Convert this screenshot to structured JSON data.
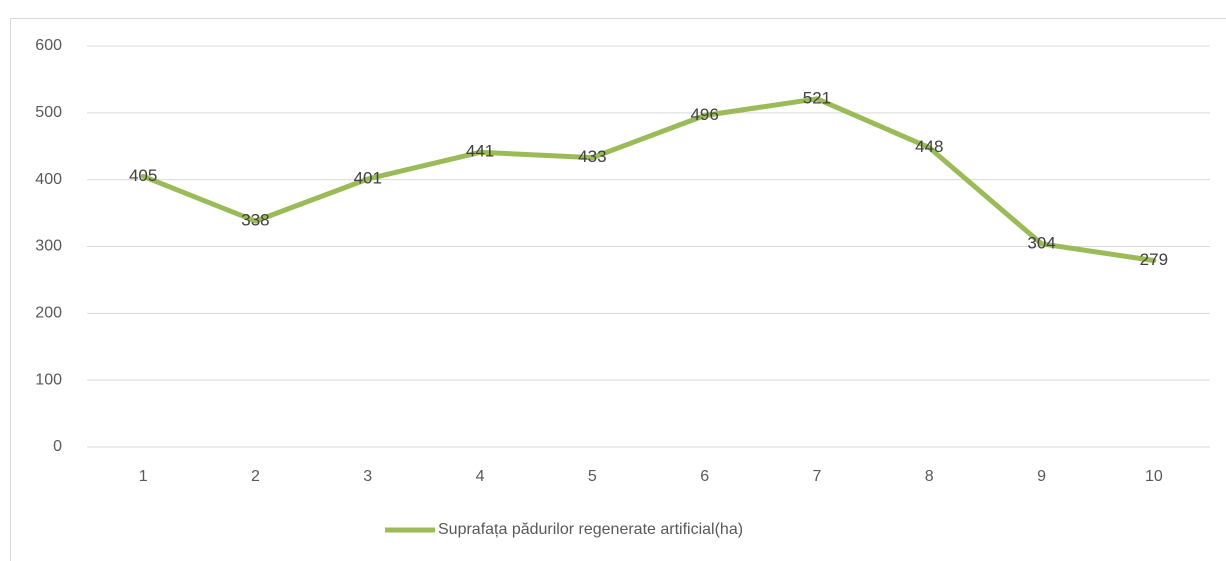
{
  "chart_data": {
    "type": "line",
    "categories": [
      "1",
      "2",
      "3",
      "4",
      "5",
      "6",
      "7",
      "8",
      "9",
      "10"
    ],
    "series": [
      {
        "name": "Suprafața pădurilor regenerate artificial(ha)",
        "color": "#9bbb59",
        "values": [
          405,
          338,
          401,
          441,
          433,
          496,
          521,
          448,
          304,
          279
        ]
      }
    ],
    "ylim": [
      0,
      600
    ],
    "yticks": [
      0,
      100,
      200,
      300,
      400,
      500,
      600
    ],
    "grid": true,
    "data_labels": true,
    "legend": "bottom"
  }
}
